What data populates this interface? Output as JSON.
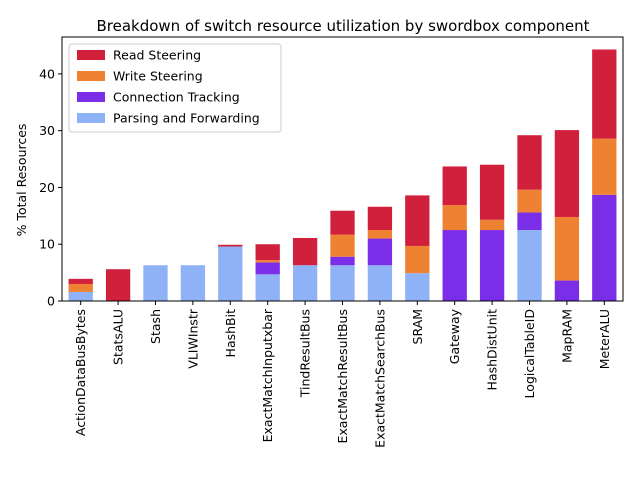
{
  "chart_data": {
    "type": "bar",
    "stacked": true,
    "title": "Breakdown of switch resource utilization by swordbox component",
    "xlabel": "",
    "ylabel": "% Total Resources",
    "ylim": [
      0,
      46.5
    ],
    "yticks": [
      0,
      10,
      20,
      30,
      40
    ],
    "grid": false,
    "legend_position": "top-left",
    "categories": [
      "ActionDataBusBytes",
      "StatsALU",
      "Stash",
      "VLIWInstr",
      "HashBit",
      "ExactMatchInputxbar",
      "TindResultBus",
      "ExactMatchResultBus",
      "ExactMatchSearchBus",
      "SRAM",
      "Gateway",
      "HashDistUnit",
      "LogicalTableID",
      "MapRAM",
      "MeterALU"
    ],
    "series": [
      {
        "name": "Parsing and Forwarding",
        "color": "#8fb2f7",
        "values": [
          1.6,
          0,
          6.3,
          6.3,
          9.6,
          4.7,
          6.3,
          6.3,
          6.3,
          4.9,
          0,
          0,
          12.5,
          0,
          0
        ]
      },
      {
        "name": "Connection Tracking",
        "color": "#7b2ee8",
        "values": [
          0,
          0,
          0,
          0,
          0,
          2.1,
          0,
          1.5,
          4.7,
          0,
          12.5,
          12.5,
          3.1,
          3.6,
          18.7
        ]
      },
      {
        "name": "Write Steering",
        "color": "#ef8133",
        "values": [
          1.4,
          0,
          0,
          0,
          0,
          0.4,
          0,
          3.9,
          1.5,
          4.8,
          4.4,
          1.8,
          4.0,
          11.2,
          9.9
        ]
      },
      {
        "name": "Read Steering",
        "color": "#d1203c",
        "values": [
          0.9,
          5.6,
          0,
          0,
          0.3,
          2.8,
          4.8,
          4.2,
          4.1,
          8.9,
          6.8,
          9.7,
          9.6,
          15.3,
          15.7
        ]
      }
    ],
    "legend_order": [
      "Read Steering",
      "Write Steering",
      "Connection Tracking",
      "Parsing and Forwarding"
    ]
  }
}
